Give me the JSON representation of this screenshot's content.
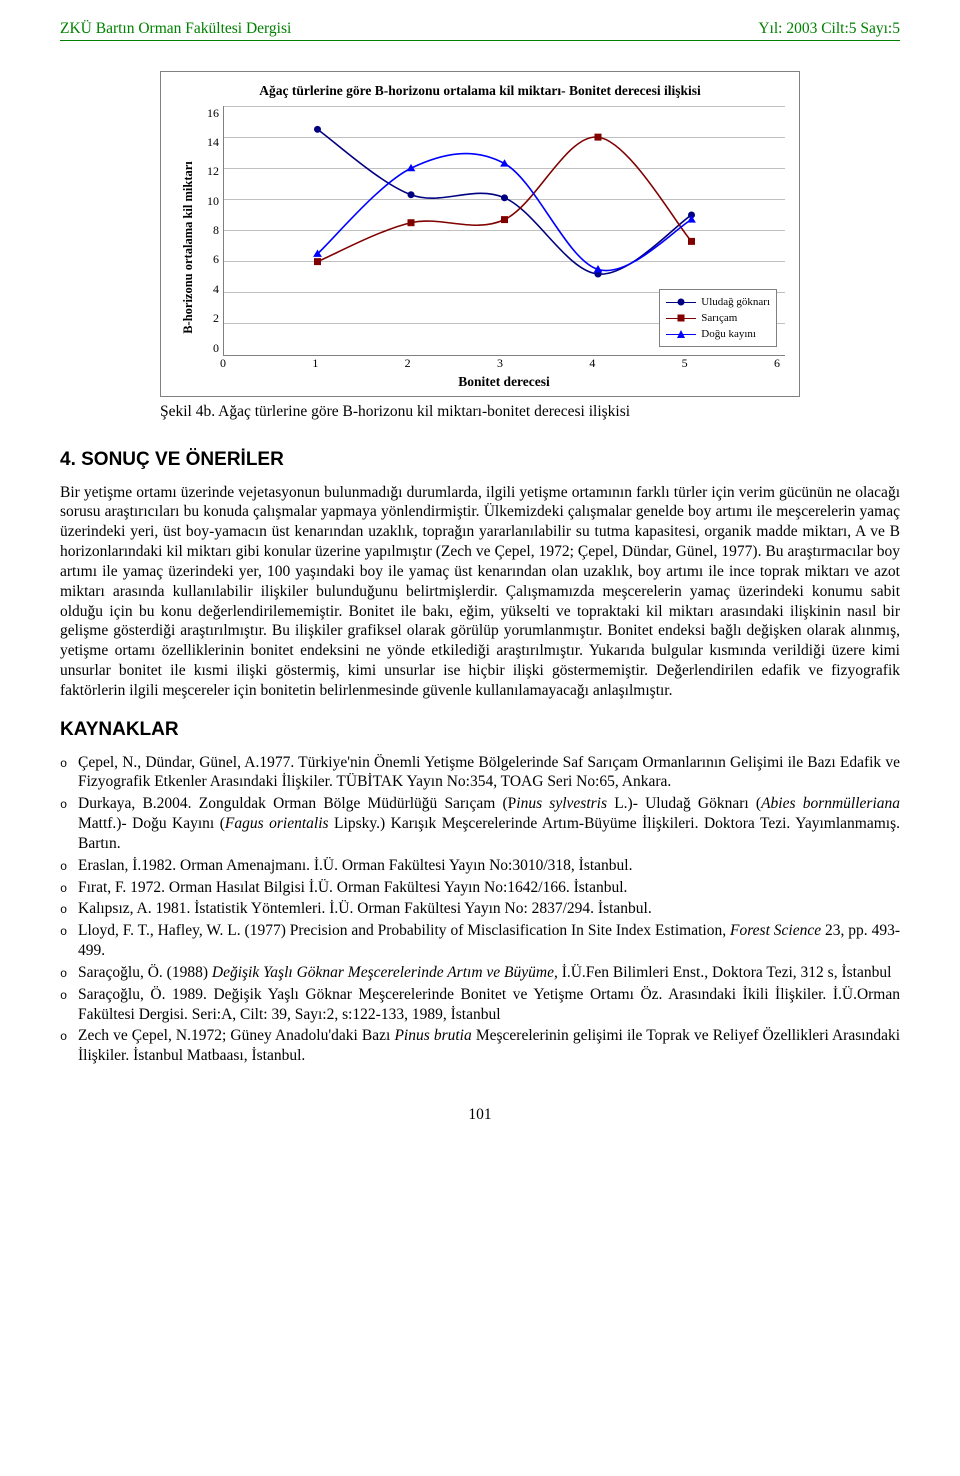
{
  "header": {
    "left": "ZKÜ Bartın Orman Fakültesi Dergisi",
    "right": "Yıl: 2003 Cilt:5 Sayı:5",
    "color": "#008000"
  },
  "chart": {
    "type": "line-scatter",
    "title": "Ağaç türlerine göre B-horizonu ortalama kil miktarı- Bonitet derecesi ilişkisi",
    "ylabel": "B-horizonu ortalama kil miktarı",
    "xlabel": "Bonitet derecesi",
    "x_values": [
      1,
      2,
      3,
      4,
      5
    ],
    "xlim": [
      0,
      6
    ],
    "ylim": [
      0,
      16
    ],
    "ytick_step": 2,
    "yticks": [
      16,
      14,
      12,
      10,
      8,
      6,
      4,
      2,
      0
    ],
    "xticks": [
      0,
      1,
      2,
      3,
      4,
      5,
      6
    ],
    "grid_color": "#c0c0c0",
    "axis_color": "#808080",
    "background_color": "#ffffff",
    "series": [
      {
        "name": "Uludağ göknarı",
        "marker": "circle",
        "color": "#000080",
        "values": [
          14.5,
          10.3,
          10.1,
          5.2,
          9.0
        ]
      },
      {
        "name": "Sarıçam",
        "marker": "square",
        "color": "#800000",
        "values": [
          6.0,
          8.5,
          8.7,
          14.0,
          7.3
        ]
      },
      {
        "name": "Doğu kayını",
        "marker": "triangle",
        "color": "#0000ff",
        "values": [
          6.5,
          12.0,
          12.3,
          5.5,
          8.7
        ]
      }
    ],
    "caption": "Şekil 4b. Ağaç türlerine göre B-horizonu kil miktarı-bonitet derecesi ilişkisi",
    "title_fontsize": 13.5,
    "label_fontsize": 13.5,
    "tick_fontsize": 12,
    "line_width": 1.6,
    "marker_size": 7
  },
  "section_conclusions": {
    "heading": "4. SONUÇ VE ÖNERİLER",
    "text": "Bir yetişme ortamı üzerinde vejetasyonun bulunmadığı durumlarda, ilgili yetişme ortamının farklı türler için verim gücünün ne olacağı sorusu araştırıcıları bu konuda çalışmalar yapmaya yönlendirmiştir. Ülkemizdeki çalışmalar genelde boy artımı ile meşcerelerin yamaç üzerindeki yeri, üst boy-yamacın üst kenarından uzaklık, toprağın yararlanılabilir su tutma kapasitesi, organik madde miktarı, A ve B horizonlarındaki kil miktarı gibi konular üzerine yapılmıştır (Zech ve Çepel, 1972; Çepel, Dündar, Günel, 1977). Bu araştırmacılar boy artımı ile yamaç üzerindeki yer, 100 yaşındaki boy ile yamaç üst kenarından olan uzaklık, boy artımı ile ince toprak miktarı ve azot miktarı arasında kullanılabilir ilişkiler bulunduğunu belirtmişlerdir. Çalışmamızda meşcerelerin yamaç üzerindeki konumu sabit olduğu için bu konu değerlendirilememiştir. Bonitet ile bakı, eğim, yükselti ve topraktaki kil miktarı arasındaki ilişkinin nasıl bir gelişme gösterdiği araştırılmıştır. Bu ilişkiler grafiksel olarak görülüp yorumlanmıştır. Bonitet endeksi bağlı değişken olarak alınmış, yetişme ortamı özelliklerinin bonitet endeksini ne yönde etkilediği araştırılmıştır. Yukarıda bulgular kısmında verildiği üzere kimi unsurlar bonitet ile kısmi ilişki göstermiş, kimi unsurlar ise hiçbir ilişki göstermemiştir. Değerlendirilen edafik ve fizyografik faktörlerin ilgili meşcereler için bonitetin belirlenmesinde güvenle kullanılamayacağı anlaşılmıştır."
  },
  "section_refs": {
    "heading": "KAYNAKLAR",
    "items": [
      {
        "plain_before": "Çepel, N., Dündar, Günel, A.1977. Türkiye'nin Önemli Yetişme Bölgelerinde Saf Sarıçam Ormanlarının Gelişimi ile Bazı Edafik ve Fizyografik Etkenler Arasındaki İlişkiler. TÜBİTAK Yayın No:354, TOAG Seri No:65, Ankara.",
        "italic": "",
        "plain_after": ""
      },
      {
        "plain_before": "Durkaya, B.2004. Zonguldak Orman Bölge Müdürlüğü Sarıçam (P",
        "italic": "inus sylvestris ",
        "plain_after": "L.)- Uludağ  Göknarı ("
      },
      {
        "plain_before": "",
        "italic": "Abies bornmülleriana ",
        "plain_after": "Mattf.)- Doğu Kayını (",
        "italic2": "Fagus orientalis ",
        "plain_after2": "Lipsky.) Karışık Meşcerelerinde Artım-Büyüme İlişkileri. Doktora Tezi. Yayımlanmamış. Bartın."
      },
      {
        "plain_before": "Eraslan, İ.1982. Orman Amenajmanı. İ.Ü. Orman Fakültesi Yayın No:3010/318, İstanbul.",
        "italic": "",
        "plain_after": ""
      },
      {
        "plain_before": "Fırat, F. 1972. Orman Hasılat Bilgisi İ.Ü. Orman Fakültesi Yayın No:1642/166. İstanbul.",
        "italic": "",
        "plain_after": ""
      },
      {
        "plain_before": "Kalıpsız, A. 1981. İstatistik Yöntemleri. İ.Ü. Orman Fakültesi Yayın No: 2837/294. İstanbul.",
        "italic": "",
        "plain_after": ""
      },
      {
        "plain_before": "Lloyd, F. T., Hafley, W. L. (1977) Precision and Probability of Misclasification In Site Index Estimation, ",
        "italic": "Forest Science ",
        "plain_after": "23, pp. 493-499."
      },
      {
        "plain_before": "Saraçoğlu, Ö. (1988) ",
        "italic": "Değişik Yaşlı Göknar Meşcerelerinde Artım ve Büyüme",
        "plain_after": ", İ.Ü.Fen Bilimleri Enst., Doktora Tezi, 312 s, İstanbul"
      },
      {
        "plain_before": "Saraçoğlu, Ö. 1989. Değişik Yaşlı Göknar Meşcerelerinde Bonitet ve Yetişme Ortamı Öz. Arasındaki İkili İlişkiler. İ.Ü.Orman Fakültesi Dergisi. Seri:A, Cilt: 39, Sayı:2, s:122-133, 1989, İstanbul",
        "italic": "",
        "plain_after": ""
      },
      {
        "plain_before": "Zech ve Çepel, N.1972;  Güney Anadolu'daki Bazı ",
        "italic": "Pinus brutia",
        "plain_after": " Meşcerelerinin gelişimi ile Toprak ve Reliyef Özellikleri Arasındaki İlişkiler. İstanbul Matbaası, İstanbul."
      }
    ]
  },
  "page_number": "101"
}
